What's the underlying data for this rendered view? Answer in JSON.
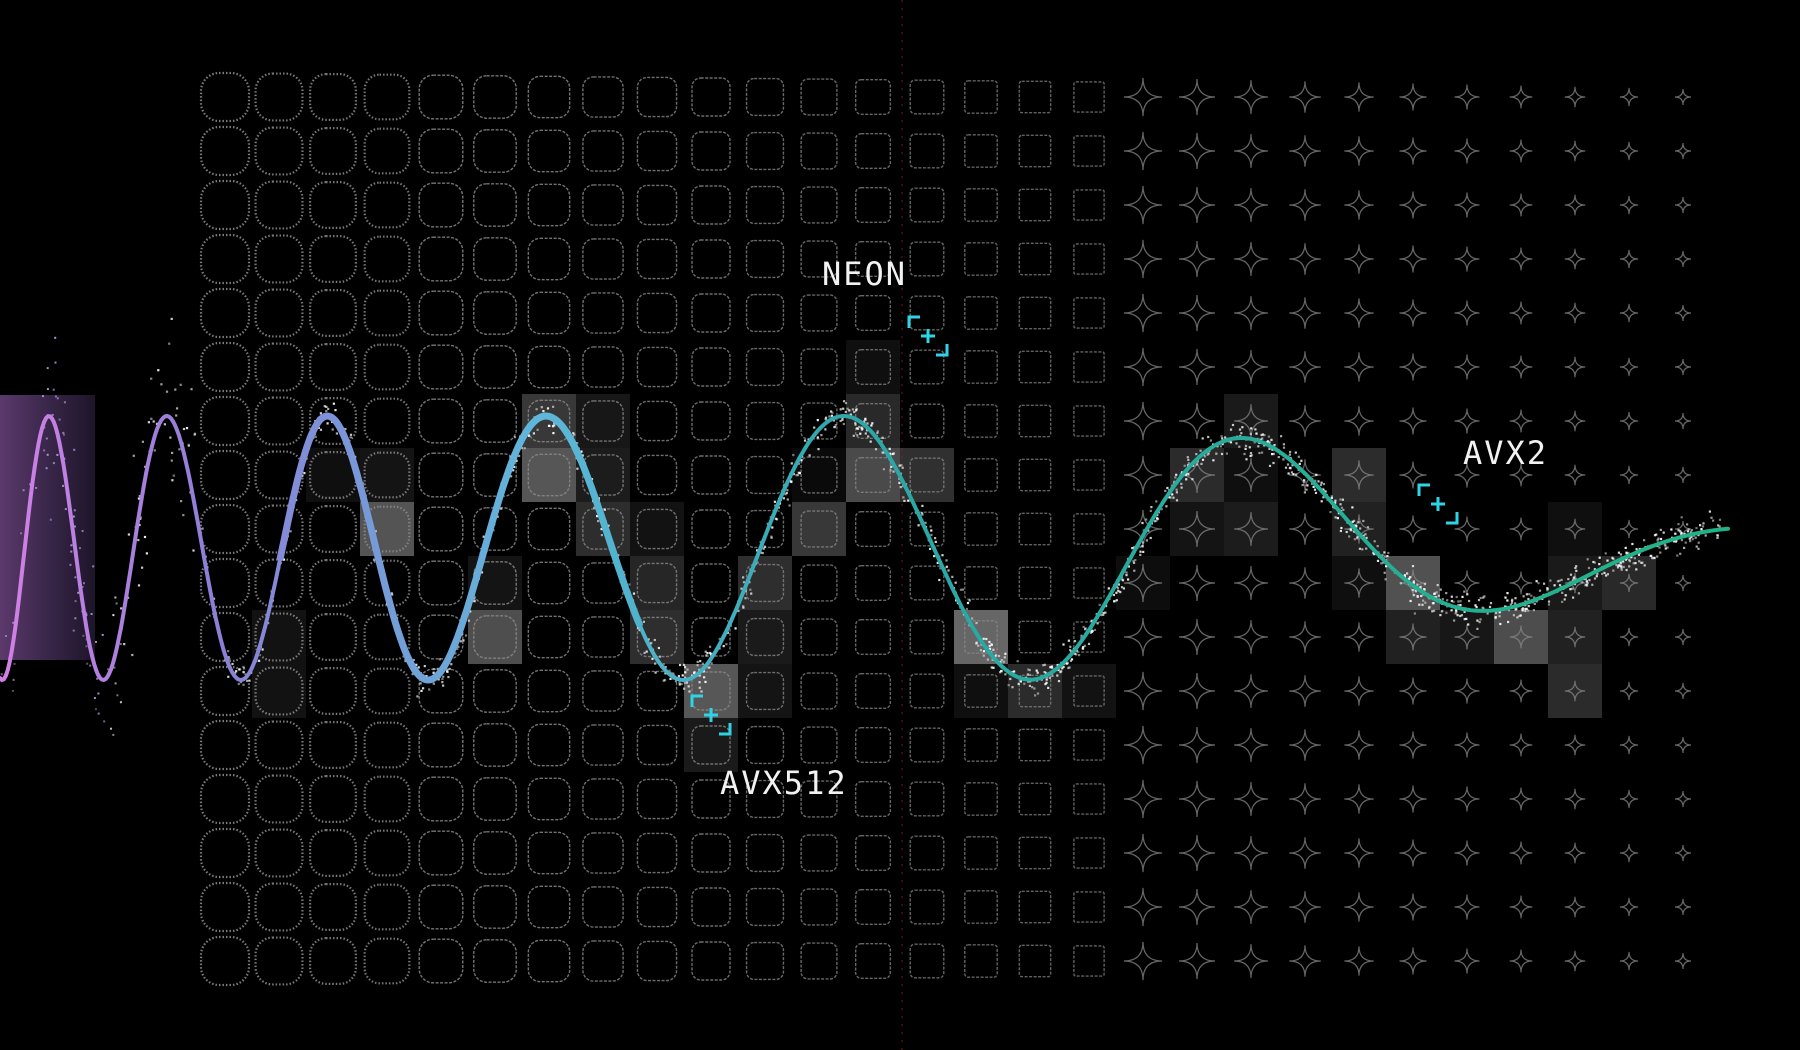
{
  "labels": {
    "neon": "NEON",
    "avx2": "AVX2",
    "avx512": "AVX512"
  },
  "colors": {
    "background": "#000000",
    "grid": "#8a8a8a",
    "marker": "#2fd3e6",
    "wave_start": "#c77be0",
    "wave_mid": "#59b8d8",
    "wave_end": "#22b38a",
    "points": "#ffffff",
    "red_line": "#b32020"
  },
  "icons": [
    "crosshair-bracket-icon"
  ]
}
